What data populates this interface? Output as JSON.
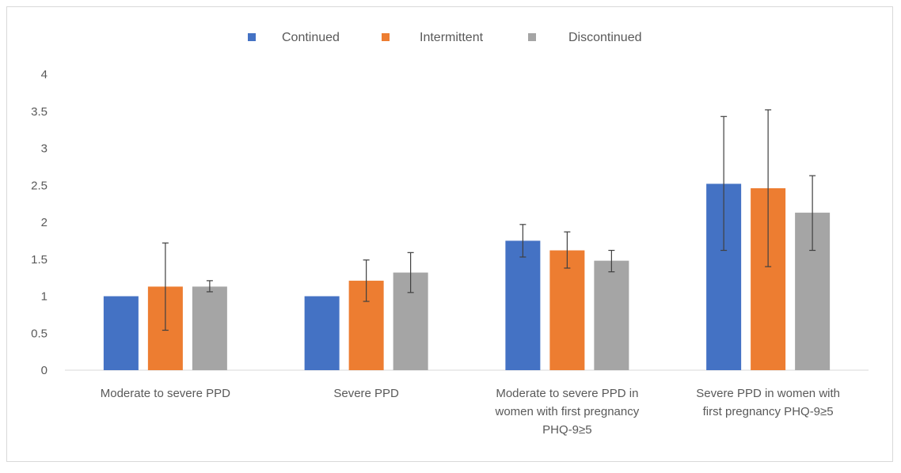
{
  "chart_data": {
    "type": "bar",
    "title": "",
    "xlabel": "",
    "ylabel": "",
    "ylim": [
      0,
      4
    ],
    "yticks": [
      0,
      0.5,
      1,
      1.5,
      2,
      2.5,
      3,
      3.5,
      4
    ],
    "ytick_labels": [
      "0",
      "0.5",
      "1",
      "1.5",
      "2",
      "2.5",
      "3",
      "3.5",
      "4"
    ],
    "grid": false,
    "legend_position": "top-center",
    "categories": [
      [
        "Moderate to severe PPD"
      ],
      [
        "Severe PPD"
      ],
      [
        "Moderate to severe PPD in",
        "women with first pregnancy",
        "PHQ-9≥5"
      ],
      [
        "Severe PPD in women with",
        "first pregnancy PHQ-9≥5"
      ]
    ],
    "series": [
      {
        "name": "Continued",
        "color": "#4472c4",
        "values": [
          1.0,
          1.0,
          1.75,
          2.52
        ],
        "err_low": [
          null,
          null,
          1.53,
          1.62
        ],
        "err_high": [
          null,
          null,
          1.97,
          3.43
        ]
      },
      {
        "name": "Intermittent",
        "color": "#ed7d31",
        "values": [
          1.13,
          1.21,
          1.62,
          2.46
        ],
        "err_low": [
          0.54,
          0.93,
          1.38,
          1.4
        ],
        "err_high": [
          1.72,
          1.49,
          1.87,
          3.52
        ]
      },
      {
        "name": "Discontinued",
        "color": "#a5a5a5",
        "values": [
          1.13,
          1.32,
          1.48,
          2.13
        ],
        "err_low": [
          1.06,
          1.05,
          1.33,
          1.62
        ],
        "err_high": [
          1.21,
          1.59,
          1.62,
          2.63
        ]
      }
    ]
  }
}
